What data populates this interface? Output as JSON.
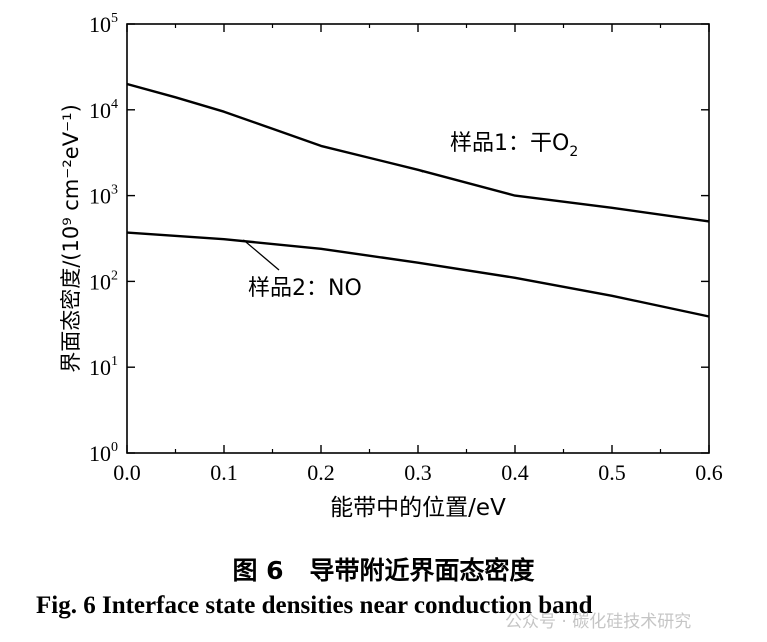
{
  "chart_data": {
    "type": "line",
    "xlabel": "能带中的位置/eV",
    "ylabel": "界面态密度/(10⁹ cm⁻²eV⁻¹)",
    "y_scale": "log",
    "xlim": [
      0.0,
      0.6
    ],
    "ylim": [
      1,
      100000
    ],
    "x_ticks": [
      "0.0",
      "0.1",
      "0.2",
      "0.3",
      "0.4",
      "0.5",
      "0.6"
    ],
    "y_tick_labels": [
      {
        "base": "10",
        "exp": "0"
      },
      {
        "base": "10",
        "exp": "1"
      },
      {
        "base": "10",
        "exp": "2"
      },
      {
        "base": "10",
        "exp": "3"
      },
      {
        "base": "10",
        "exp": "4"
      },
      {
        "base": "10",
        "exp": "5"
      }
    ],
    "series": [
      {
        "name": "样品1：干O₂",
        "label_prefix": "样品1：干O",
        "label_sub": "2",
        "x": [
          0.0,
          0.05,
          0.1,
          0.15,
          0.2,
          0.3,
          0.4,
          0.5,
          0.6
        ],
        "y": [
          20000,
          14000,
          9500,
          6000,
          3800,
          2000,
          1000,
          720,
          500
        ]
      },
      {
        "name": "样品2：NO",
        "label_prefix": "样品2：NO",
        "label_sub": "",
        "x": [
          0.0,
          0.1,
          0.2,
          0.3,
          0.4,
          0.5,
          0.6
        ],
        "y": [
          370,
          310,
          240,
          165,
          110,
          68,
          39
        ]
      }
    ],
    "grid": false
  },
  "caption": {
    "cn_number": "图 6",
    "cn_title": "导带附近界面态密度",
    "en": "Fig. 6    Interface state densities near conduction band"
  },
  "watermark": "公众号 · 碳化硅技术研究"
}
